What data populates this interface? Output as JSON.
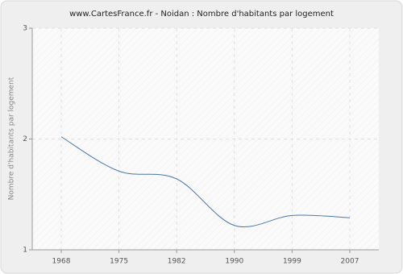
{
  "chart_data": {
    "type": "line",
    "title": "www.CartesFrance.fr - Noidan : Nombre d'habitants par logement",
    "y_label": "Nombre d'habitants par logement",
    "categories": [
      "1968",
      "1975",
      "1982",
      "1990",
      "1999",
      "2007"
    ],
    "series": [
      {
        "name": "Noidan",
        "color": "#4a77a8",
        "values": [
          2.02,
          1.71,
          1.64,
          1.22,
          1.31,
          1.29
        ]
      }
    ],
    "ylim": [
      1,
      3
    ],
    "yticks": [
      1,
      2,
      3
    ],
    "grid": true,
    "legend": false
  }
}
